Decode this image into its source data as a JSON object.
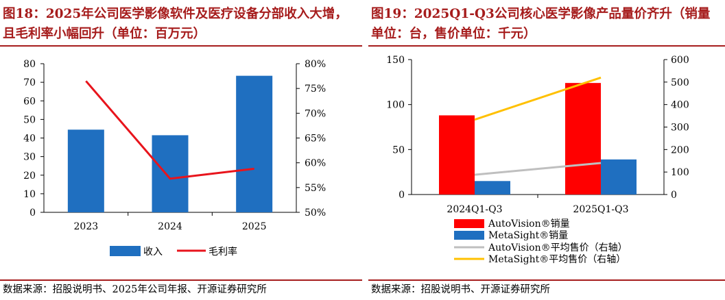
{
  "figures": [
    {
      "title": "图18：2025年公司医学影像软件及医疗设备分部收入大增，且毛利率小幅回升（单位：百万元）",
      "source": "数据来源：招股说明书、2025年公司年报、开源证券研究所",
      "colors": {
        "bar": "#1f6fc0",
        "line": "#e8141c",
        "title": "#a61c1c"
      },
      "chart_data": {
        "type": "bar+line",
        "categories": [
          "2023",
          "2024",
          "2025"
        ],
        "y_left": {
          "min": 0,
          "max": 80,
          "ticks": [
            "0",
            "10",
            "20",
            "30",
            "40",
            "50",
            "60",
            "70",
            "80"
          ]
        },
        "y_right": {
          "min": 50,
          "max": 80,
          "ticks": [
            "50%",
            "55%",
            "60%",
            "65%",
            "70%",
            "75%",
            "80%"
          ]
        },
        "series": [
          {
            "name": "收入",
            "type": "bar",
            "axis": "left",
            "values": [
              44.5,
              41.5,
              73.5
            ]
          },
          {
            "name": "毛利率",
            "type": "line",
            "axis": "right",
            "values": [
              76.5,
              56.8,
              58.8
            ]
          }
        ],
        "legend": "bottom"
      }
    },
    {
      "title": "图19：2025Q1-Q3公司核心医学影像产品量价齐升（销量单位：台，售价单位：千元）",
      "source": "数据来源：招股说明书、开源证券研究所",
      "colors": {
        "bar1": "#ff0000",
        "bar2": "#1f6fc0",
        "line1": "#bfbfbf",
        "line2": "#ffc000",
        "title": "#a61c1c"
      },
      "chart_data": {
        "type": "bar+line",
        "categories": [
          "2024Q1-Q3",
          "2025Q1-Q3"
        ],
        "y_left": {
          "min": 0,
          "max": 150,
          "ticks": [
            "0",
            "50",
            "100",
            "150"
          ]
        },
        "y_right": {
          "min": 0,
          "max": 600,
          "ticks": [
            "0",
            "100",
            "200",
            "300",
            "400",
            "500",
            "600"
          ]
        },
        "series": [
          {
            "name": "AutoVision®销量",
            "type": "bar",
            "axis": "left",
            "values": [
              88,
              124
            ]
          },
          {
            "name": "MetaSight®销量",
            "type": "bar",
            "axis": "left",
            "values": [
              15,
              39
            ]
          },
          {
            "name": "AutoVision®平均售价（右轴）",
            "type": "line",
            "axis": "right",
            "values": [
              88,
              140
            ]
          },
          {
            "name": "MetaSight®平均售价（右轴）",
            "type": "line",
            "axis": "right",
            "values": [
              333,
              520
            ]
          }
        ],
        "legend": "bottom"
      }
    }
  ]
}
